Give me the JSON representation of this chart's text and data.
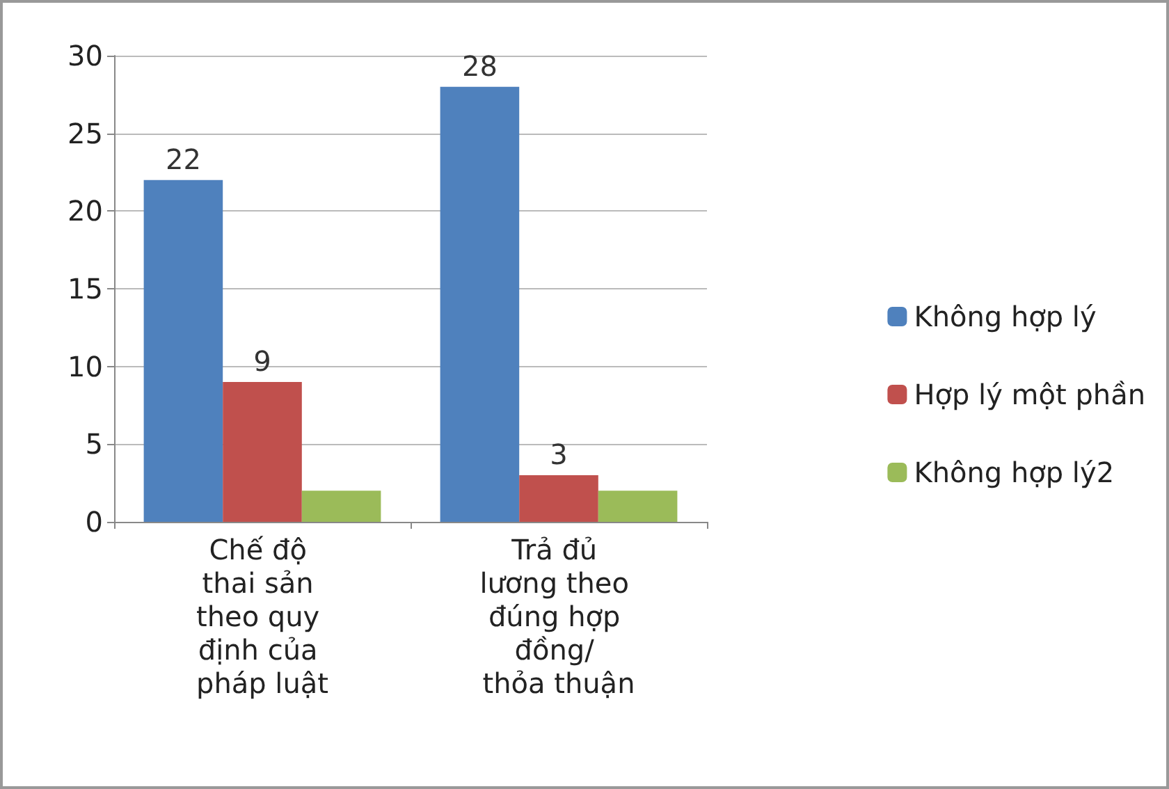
{
  "chart_data": {
    "type": "bar",
    "categories": [
      "Chế độ thai sản theo quy định của pháp luật",
      "Trả đủ lương theo đúng hợp đồng/ thỏa thuận"
    ],
    "series": [
      {
        "name": "Không hợp lý",
        "color": "#4f81bd",
        "values": [
          22,
          28
        ],
        "value_labels": [
          "22",
          "28"
        ]
      },
      {
        "name": "Hợp lý một phần",
        "color": "#c0504d",
        "values": [
          9,
          3
        ],
        "value_labels": [
          "9",
          "3"
        ]
      },
      {
        "name": "Không hợp lý2",
        "color": "#9bbb59",
        "values": [
          2,
          2
        ],
        "value_labels": [
          null,
          null
        ]
      }
    ],
    "ylim": [
      0,
      30
    ],
    "yticks": [
      0,
      5,
      10,
      15,
      20,
      25,
      30
    ],
    "grid": "y",
    "legend": "right"
  }
}
